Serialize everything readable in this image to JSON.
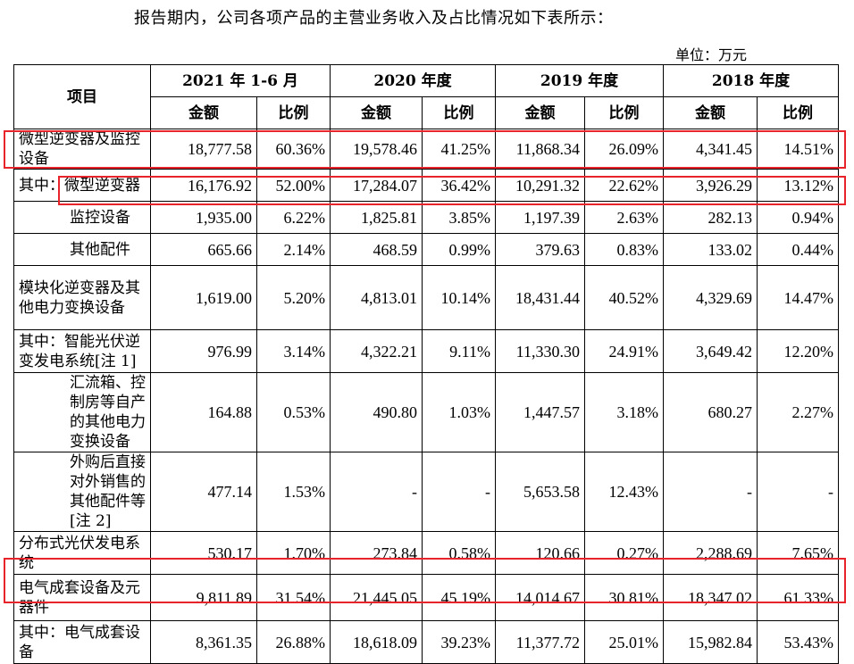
{
  "intro": "报告期内，公司各项产品的主营业务收入及占比情况如下表所示：",
  "unit": "单位：万元",
  "header": {
    "item": "项目",
    "periods": [
      "2021 年 1-6 月",
      "2020 年度",
      "2019 年度",
      "2018 年度"
    ],
    "amount": "金额",
    "ratio": "比例"
  },
  "rows": [
    {
      "label": "微型逆变器及监控设备",
      "values": [
        "18,777.58",
        "60.36%",
        "19,578.46",
        "41.25%",
        "11,868.34",
        "26.09%",
        "4,341.45",
        "14.51%"
      ]
    },
    {
      "prefix": "其中：",
      "label": "微型逆变器",
      "values": [
        "16,176.92",
        "52.00%",
        "17,284.07",
        "36.42%",
        "10,291.32",
        "22.62%",
        "3,926.29",
        "13.12%"
      ]
    },
    {
      "label": "监控设备",
      "values": [
        "1,935.00",
        "6.22%",
        "1,825.81",
        "3.85%",
        "1,197.39",
        "2.63%",
        "282.13",
        "0.94%"
      ]
    },
    {
      "label": "其他配件",
      "values": [
        "665.66",
        "2.14%",
        "468.59",
        "0.99%",
        "379.63",
        "0.83%",
        "133.02",
        "0.44%"
      ]
    },
    {
      "label": "模块化逆变器及其他电力变换设备",
      "values": [
        "1,619.00",
        "5.20%",
        "4,813.01",
        "10.14%",
        "18,431.44",
        "40.52%",
        "4,329.69",
        "14.47%"
      ]
    },
    {
      "label": "其中：智能光伏逆变发电系统[注 1]",
      "values": [
        "976.99",
        "3.14%",
        "4,322.21",
        "9.11%",
        "11,330.30",
        "24.91%",
        "3,649.42",
        "12.20%"
      ]
    },
    {
      "label": "汇流箱、控制房等自产的其他电力变换设备",
      "values": [
        "164.88",
        "0.53%",
        "490.80",
        "1.03%",
        "1,447.57",
        "3.18%",
        "680.27",
        "2.27%"
      ]
    },
    {
      "label": "外购后直接对外销售的其他配件等[注 2]",
      "values": [
        "477.14",
        "1.53%",
        "-",
        "-",
        "5,653.58",
        "12.43%",
        "-",
        "-"
      ]
    },
    {
      "label": "分布式光伏发电系统",
      "values": [
        "530.17",
        "1.70%",
        "273.84",
        "0.58%",
        "120.66",
        "0.27%",
        "2,288.69",
        "7.65%"
      ]
    },
    {
      "label": "电气成套设备及元器件",
      "values": [
        "9,811.89",
        "31.54%",
        "21,445.05",
        "45.19%",
        "14,014.67",
        "30.81%",
        "18,347.02",
        "61.33%"
      ]
    },
    {
      "label": "其中：电气成套设备",
      "values": [
        "8,361.35",
        "26.88%",
        "18,618.09",
        "39.23%",
        "11,377.72",
        "25.01%",
        "15,982.84",
        "53.43%"
      ]
    }
  ],
  "highlight_color": "#e8232a"
}
